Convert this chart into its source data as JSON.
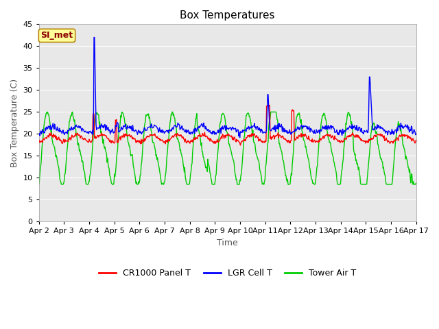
{
  "title": "Box Temperatures",
  "xlabel": "Time",
  "ylabel": "Box Temperature (C)",
  "ylim": [
    0,
    45
  ],
  "yticks": [
    0,
    5,
    10,
    15,
    20,
    25,
    30,
    35,
    40,
    45
  ],
  "x_labels": [
    "Apr 2",
    "Apr 3",
    "Apr 4",
    "Apr 5",
    "Apr 6",
    "Apr 7",
    "Apr 8",
    "Apr 9",
    "Apr 10",
    "Apr 11",
    "Apr 12",
    "Apr 13",
    "Apr 14",
    "Apr 15",
    "Apr 16",
    "Apr 17"
  ],
  "annotation_text": "SI_met",
  "annotation_color": "#8B0000",
  "annotation_bg": "#FFFF99",
  "annotation_border": "#B8860B",
  "legend_labels": [
    "CR1000 Panel T",
    "LGR Cell T",
    "Tower Air T"
  ],
  "legend_colors": [
    "#FF0000",
    "#0000FF",
    "#00CC00"
  ],
  "line_colors": [
    "#FF0000",
    "#0000FF",
    "#00CC00"
  ],
  "fig_bg_color": "#FFFFFF",
  "plot_bg_color": "#E8E8E8",
  "title_fontsize": 11,
  "axis_label_fontsize": 9,
  "tick_fontsize": 8,
  "legend_fontsize": 9,
  "n_points": 720,
  "cr1000_base": 19.0,
  "lgr_base": 21.0,
  "tower_base": 16.5
}
